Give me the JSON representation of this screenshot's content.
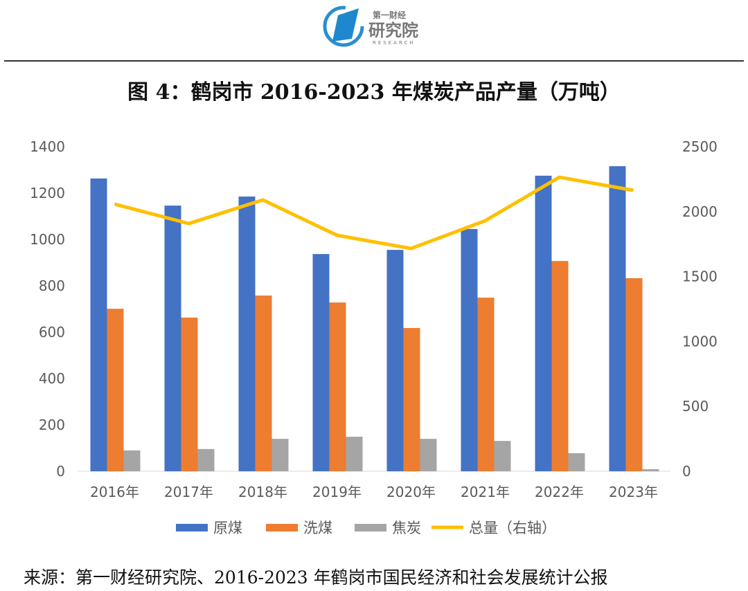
{
  "logo": {
    "line1": "第一财经",
    "line2": "研究院",
    "line3": "RESEARCH"
  },
  "title": "图 4：鹤岗市 2016-2023 年煤炭产品产量（万吨）",
  "source": "来源：第一财经研究院、2016-2023 年鹤岗市国民经济和社会发展统计公报",
  "chart_data": {
    "type": "bar",
    "categories": [
      "2016年",
      "2017年",
      "2018年",
      "2019年",
      "2020年",
      "2021年",
      "2022年",
      "2023年"
    ],
    "series": [
      {
        "name": "原煤",
        "type": "bar",
        "axis": "left",
        "color": "#4472C4",
        "values": [
          1263,
          1146,
          1185,
          937,
          955,
          1045,
          1275,
          1316
        ]
      },
      {
        "name": "洗煤",
        "type": "bar",
        "axis": "left",
        "color": "#ED7D31",
        "values": [
          701,
          663,
          758,
          728,
          618,
          749,
          907,
          833
        ]
      },
      {
        "name": "焦炭",
        "type": "bar",
        "axis": "left",
        "color": "#A5A5A5",
        "values": [
          90,
          96,
          140,
          149,
          140,
          131,
          78,
          9
        ]
      },
      {
        "name": "总量（右轴）",
        "type": "line",
        "axis": "right",
        "color": "#FFC000",
        "values": [
          2058,
          1908,
          2090,
          1818,
          1716,
          1930,
          2265,
          2164
        ]
      }
    ],
    "ylim": [
      0,
      1400
    ],
    "yticks": [
      0,
      200,
      400,
      600,
      800,
      1000,
      1200,
      1400
    ],
    "y2lim": [
      0,
      2500
    ],
    "y2ticks": [
      0,
      500,
      1000,
      1500,
      2000,
      2500
    ],
    "grid": false,
    "legend": "bottom"
  }
}
